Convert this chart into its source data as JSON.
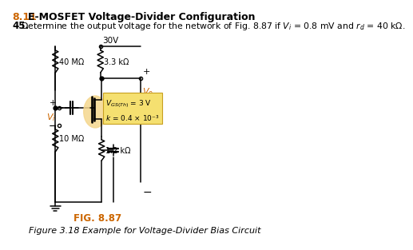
{
  "section_number": "8.11",
  "section_title": "E-MOSFET Voltage-Divider Configuration",
  "problem_number": "45.",
  "problem_text": "Determine the output voltage for the network of Fig. 8.87 if $V_i$ = 0.8 mV and $r_d$ = 40 kΩ.",
  "fig_label": "FIG. 8.87",
  "fig_caption": "Figure 3.18 Example for Voltage-Divider Bias Circuit",
  "vdd_label": "30V",
  "r1_label": "3.3 kΩ",
  "r40_label": "40 MΩ",
  "r10_label": "10 MΩ",
  "rs_label": "1.2 kΩ",
  "bg_color": "#ffffff",
  "section_color": "#cc6600",
  "fig_label_color": "#cc6600",
  "mosfet_circle_color": "#f5d78e",
  "highlight_box_color": "#f5e070",
  "highlight_box_edge": "#c8a020"
}
